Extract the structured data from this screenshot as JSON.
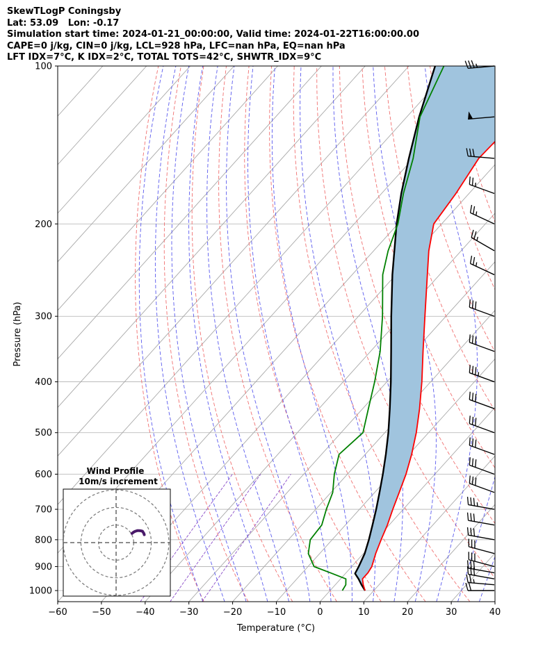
{
  "header": {
    "title": "SkewTLogP Coningsby",
    "location": "Lat: 53.09   Lon: -0.17",
    "times": "Simulation start time: 2024-01-21_00:00:00, Valid time: 2024-01-22T16:00:00.00",
    "indices1": "CAPE=0 j/kg, CIN=0 j/kg, LCL=928 hPa, LFC=nan hPa, EQ=nan hPa",
    "indices2": "LFT IDX=7°C, K IDX=2°C, TOTAL TOTS=42°C, SHWTR_IDX=9°C"
  },
  "chart_data": {
    "type": "line",
    "subtype": "skew-t log-p",
    "xlabel": "Temperature (°C)",
    "ylabel": "Pressure (hPa)",
    "xlim": [
      -60,
      40
    ],
    "ylim": [
      1050,
      100
    ],
    "y_scale": "log",
    "grid": true,
    "x_ticks": [
      -60,
      -50,
      -40,
      -30,
      -20,
      -10,
      0,
      10,
      20,
      30,
      40
    ],
    "x_tick_labels": [
      "−60",
      "−50",
      "−40",
      "−30",
      "−20",
      "−10",
      "0",
      "10",
      "20",
      "30",
      "40"
    ],
    "y_ticks": [
      1000,
      900,
      800,
      700,
      600,
      500,
      400,
      300,
      200,
      100
    ],
    "y_tick_labels": [
      "1000",
      "900",
      "800",
      "700",
      "600",
      "500",
      "400",
      "300",
      "200",
      "100"
    ],
    "colors": {
      "temperature": "#ff0000",
      "dewpoint": "#008000",
      "parcel": "#000000",
      "fill": "#a0c4de",
      "dry_adiabats": "#f07070",
      "moist_adiabats": "#5a5aee",
      "isotherms": "#a8a8a8",
      "mixing_ratio": "#8a4cc8"
    },
    "series": [
      {
        "key": "temperature",
        "points": [
          [
            1000,
            8
          ],
          [
            975,
            6.4
          ],
          [
            950,
            5
          ],
          [
            925,
            5
          ],
          [
            900,
            4.6
          ],
          [
            850,
            2.8
          ],
          [
            800,
            1.2
          ],
          [
            750,
            -0.4
          ],
          [
            700,
            -2.4
          ],
          [
            650,
            -4.4
          ],
          [
            600,
            -6.6
          ],
          [
            550,
            -9.4
          ],
          [
            500,
            -12.8
          ],
          [
            450,
            -17
          ],
          [
            400,
            -22
          ],
          [
            350,
            -28
          ],
          [
            300,
            -34.8
          ],
          [
            250,
            -42.8
          ],
          [
            225,
            -47.4
          ],
          [
            200,
            -51.8
          ],
          [
            175,
            -53
          ],
          [
            150,
            -55
          ],
          [
            125,
            -54.4
          ],
          [
            100,
            -55.4
          ]
        ]
      },
      {
        "key": "dewpoint",
        "points": [
          [
            1000,
            2.8
          ],
          [
            975,
            2.4
          ],
          [
            950,
            1.2
          ],
          [
            925,
            -3.6
          ],
          [
            900,
            -8.6
          ],
          [
            850,
            -12.6
          ],
          [
            800,
            -15
          ],
          [
            750,
            -15.4
          ],
          [
            700,
            -17.6
          ],
          [
            650,
            -19.6
          ],
          [
            600,
            -23
          ],
          [
            550,
            -26
          ],
          [
            500,
            -25
          ],
          [
            450,
            -28.7
          ],
          [
            400,
            -32.8
          ],
          [
            350,
            -37.8
          ],
          [
            300,
            -44.5
          ],
          [
            250,
            -53
          ],
          [
            225,
            -56.7
          ],
          [
            200,
            -60
          ],
          [
            175,
            -65
          ],
          [
            150,
            -70
          ],
          [
            125,
            -77
          ],
          [
            100,
            -82
          ]
        ]
      },
      {
        "key": "parcel",
        "points": [
          [
            1000,
            8
          ],
          [
            975,
            6
          ],
          [
            950,
            4.1
          ],
          [
            928,
            2.2
          ],
          [
            900,
            1.6
          ],
          [
            850,
            0.3
          ],
          [
            800,
            -1.6
          ],
          [
            750,
            -3.8
          ],
          [
            700,
            -6.2
          ],
          [
            650,
            -8.9
          ],
          [
            600,
            -11.9
          ],
          [
            550,
            -15.3
          ],
          [
            500,
            -19.2
          ],
          [
            450,
            -23.8
          ],
          [
            400,
            -29.1
          ],
          [
            350,
            -35.3
          ],
          [
            300,
            -42.5
          ],
          [
            250,
            -50.8
          ],
          [
            200,
            -60.3
          ],
          [
            175,
            -65.5
          ],
          [
            150,
            -71
          ],
          [
            125,
            -77.2
          ],
          [
            100,
            -84
          ]
        ]
      }
    ],
    "wind_barbs": [
      {
        "pressure": 1000,
        "speed_kt": 20,
        "dir_deg": 270
      },
      {
        "pressure": 975,
        "speed_kt": 25,
        "dir_deg": 275
      },
      {
        "pressure": 950,
        "speed_kt": 30,
        "dir_deg": 280
      },
      {
        "pressure": 925,
        "speed_kt": 30,
        "dir_deg": 280
      },
      {
        "pressure": 900,
        "speed_kt": 30,
        "dir_deg": 285
      },
      {
        "pressure": 850,
        "speed_kt": 30,
        "dir_deg": 285
      },
      {
        "pressure": 800,
        "speed_kt": 30,
        "dir_deg": 280
      },
      {
        "pressure": 750,
        "speed_kt": 30,
        "dir_deg": 280
      },
      {
        "pressure": 700,
        "speed_kt": 35,
        "dir_deg": 280
      },
      {
        "pressure": 650,
        "speed_kt": 30,
        "dir_deg": 290
      },
      {
        "pressure": 600,
        "speed_kt": 30,
        "dir_deg": 290
      },
      {
        "pressure": 550,
        "speed_kt": 30,
        "dir_deg": 290
      },
      {
        "pressure": 500,
        "speed_kt": 30,
        "dir_deg": 290
      },
      {
        "pressure": 450,
        "speed_kt": 30,
        "dir_deg": 290
      },
      {
        "pressure": 400,
        "speed_kt": 35,
        "dir_deg": 290
      },
      {
        "pressure": 350,
        "speed_kt": 30,
        "dir_deg": 290
      },
      {
        "pressure": 300,
        "speed_kt": 30,
        "dir_deg": 290
      },
      {
        "pressure": 250,
        "speed_kt": 25,
        "dir_deg": 295
      },
      {
        "pressure": 225,
        "speed_kt": 25,
        "dir_deg": 300
      },
      {
        "pressure": 200,
        "speed_kt": 25,
        "dir_deg": 295
      },
      {
        "pressure": 175,
        "speed_kt": 25,
        "dir_deg": 290
      },
      {
        "pressure": 150,
        "speed_kt": 30,
        "dir_deg": 275
      },
      {
        "pressure": 125,
        "speed_kt": 50,
        "dir_deg": 265
      },
      {
        "pressure": 100,
        "speed_kt": 35,
        "dir_deg": 265
      }
    ],
    "hodograph": {
      "title": "Wind Profile",
      "subtitle": "10m/s increment",
      "ring_count": 3,
      "ring_increment_ms": 10,
      "trace_color": "#4a1a6a",
      "points": [
        [
          9,
          5.2
        ],
        [
          10,
          6
        ],
        [
          11,
          6.5
        ],
        [
          12,
          6.8
        ],
        [
          13,
          6.8
        ],
        [
          14,
          6.7
        ],
        [
          15,
          6.5
        ],
        [
          15.4,
          5.8
        ],
        [
          15.8,
          5.2
        ],
        [
          16,
          4.5
        ]
      ]
    }
  }
}
